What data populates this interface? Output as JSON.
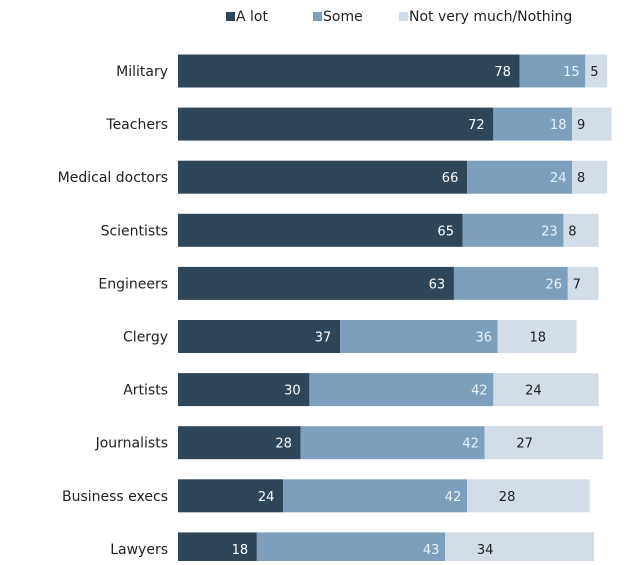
{
  "chart_data": {
    "type": "bar",
    "orientation": "horizontal",
    "stacked": true,
    "categories": [
      "Military",
      "Teachers",
      "Medical doctors",
      "Scientists",
      "Engineers",
      "Clergy",
      "Artists",
      "Journalists",
      "Business execs",
      "Lawyers"
    ],
    "series": [
      {
        "name": "A lot",
        "values": [
          78,
          72,
          66,
          65,
          63,
          37,
          30,
          28,
          24,
          18
        ],
        "color": "#2f4558",
        "label_color": "#ffffff"
      },
      {
        "name": "Some",
        "values": [
          15,
          18,
          24,
          23,
          26,
          36,
          42,
          42,
          42,
          43
        ],
        "color": "#7d9fbb",
        "label_color": "#eaf1f7"
      },
      {
        "name": "Not very much/Nothing",
        "values": [
          5,
          9,
          8,
          8,
          7,
          18,
          24,
          27,
          28,
          34
        ],
        "color": "#d2dde7",
        "label_color": "#1e1e1e"
      }
    ],
    "legend_position": "top",
    "grid": false
  }
}
